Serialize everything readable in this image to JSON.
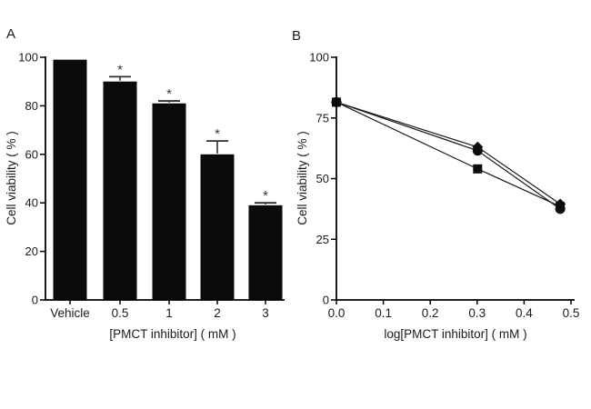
{
  "figure": {
    "background": "#ffffff",
    "text_color": "#1a1a1a",
    "panels": [
      {
        "label": "A"
      },
      {
        "label": "B"
      }
    ]
  },
  "chart_data": [
    {
      "type": "bar",
      "panel": "A",
      "categories": [
        "Vehicle",
        "0.5",
        "1",
        "2",
        "3"
      ],
      "values": [
        99,
        90,
        81,
        60,
        39
      ],
      "errors": [
        0,
        2,
        1,
        5.5,
        1
      ],
      "significance": [
        "",
        "*",
        "*",
        "*",
        "*"
      ],
      "xlabel": "[PMCT inhibitor] ( mM )",
      "ylabel": "Cell viability ( % )",
      "ylim": [
        0,
        100
      ],
      "yticks": [
        0,
        20,
        40,
        60,
        80,
        100
      ],
      "grid": false,
      "legend": "none",
      "bar_color": "#0b0b0b",
      "error_bar_color": "#2e2e2e",
      "sig_color": "#3a3a3a"
    },
    {
      "type": "line",
      "panel": "B",
      "x": [
        0.0,
        0.301,
        0.477
      ],
      "series": [
        {
          "name": "diamond-series",
          "marker": "diamond",
          "values": [
            81.5,
            63,
            39.5
          ]
        },
        {
          "name": "square-series",
          "marker": "square",
          "values": [
            81.5,
            54,
            38.5
          ]
        },
        {
          "name": "circle-series",
          "marker": "circle",
          "values": [
            81.5,
            61.5,
            37.5
          ]
        }
      ],
      "xlabel": "log[PMCT inhibitor] ( mM )",
      "ylabel": "Cell viability ( % )",
      "xlim": [
        0,
        0.5
      ],
      "ylim": [
        0,
        100
      ],
      "xticks": [
        0.0,
        0.1,
        0.2,
        0.3,
        0.4,
        0.5
      ],
      "yticks": [
        0,
        25,
        50,
        75,
        100
      ],
      "grid": false,
      "legend": "none",
      "line_color": "#1a1a1a",
      "marker_color": "#0d0d0d"
    }
  ]
}
